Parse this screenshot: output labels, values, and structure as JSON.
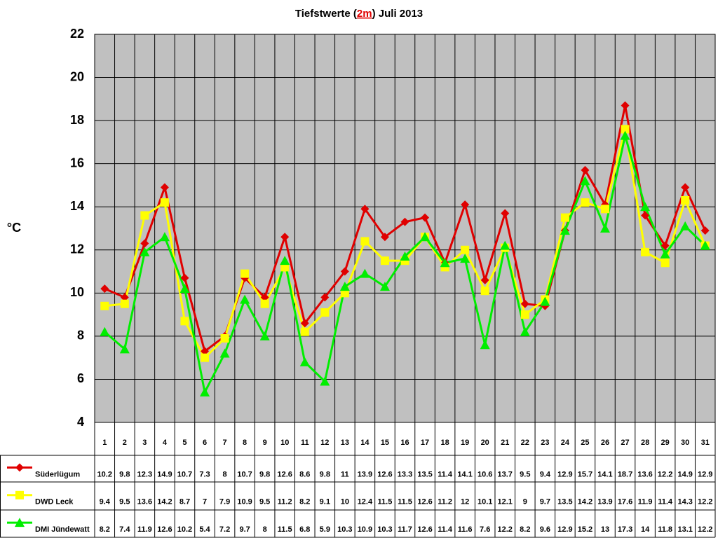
{
  "chart_data": {
    "type": "line",
    "title": [
      "Tiefstwerte (",
      "2m",
      ") Juli 2013"
    ],
    "ylabel": "°C",
    "categories": [
      "1",
      "2",
      "3",
      "4",
      "5",
      "6",
      "7",
      "8",
      "9",
      "10",
      "11",
      "12",
      "13",
      "14",
      "15",
      "16",
      "17",
      "18",
      "19",
      "20",
      "21",
      "22",
      "23",
      "24",
      "25",
      "26",
      "27",
      "28",
      "29",
      "30",
      "31"
    ],
    "series": [
      {
        "name": "Süderlügum",
        "color": "#e00000",
        "marker": "diamond",
        "values": [
          10.2,
          9.8,
          12.3,
          14.9,
          10.7,
          7.3,
          8,
          10.7,
          9.8,
          12.6,
          8.6,
          9.8,
          11,
          13.9,
          12.6,
          13.3,
          13.5,
          11.4,
          14.1,
          10.6,
          13.7,
          9.5,
          9.4,
          12.9,
          15.7,
          14.1,
          18.7,
          13.6,
          12.2,
          14.9,
          12.9
        ]
      },
      {
        "name": "DWD Leck",
        "color": "#ffff00",
        "marker": "square",
        "values": [
          9.4,
          9.5,
          13.6,
          14.2,
          8.7,
          7,
          7.9,
          10.9,
          9.5,
          11.2,
          8.2,
          9.1,
          10,
          12.4,
          11.5,
          11.5,
          12.6,
          11.2,
          12,
          10.1,
          12.1,
          9,
          9.7,
          13.5,
          14.2,
          13.9,
          17.6,
          11.9,
          11.4,
          14.3,
          12.2
        ]
      },
      {
        "name": "DMI Jündewatt",
        "color": "#00ee00",
        "marker": "triangle",
        "values": [
          8.2,
          7.4,
          11.9,
          12.6,
          10.2,
          5.4,
          7.2,
          9.7,
          8,
          11.5,
          6.8,
          5.9,
          10.3,
          10.9,
          10.3,
          11.7,
          12.6,
          11.4,
          11.6,
          7.6,
          12.2,
          8.2,
          9.6,
          12.9,
          15.2,
          13,
          17.3,
          14,
          11.8,
          13.1,
          12.2
        ]
      }
    ],
    "ylim": [
      4,
      22
    ],
    "yticks": [
      4,
      6,
      8,
      10,
      12,
      14,
      16,
      18,
      20,
      22
    ],
    "grid": true
  }
}
